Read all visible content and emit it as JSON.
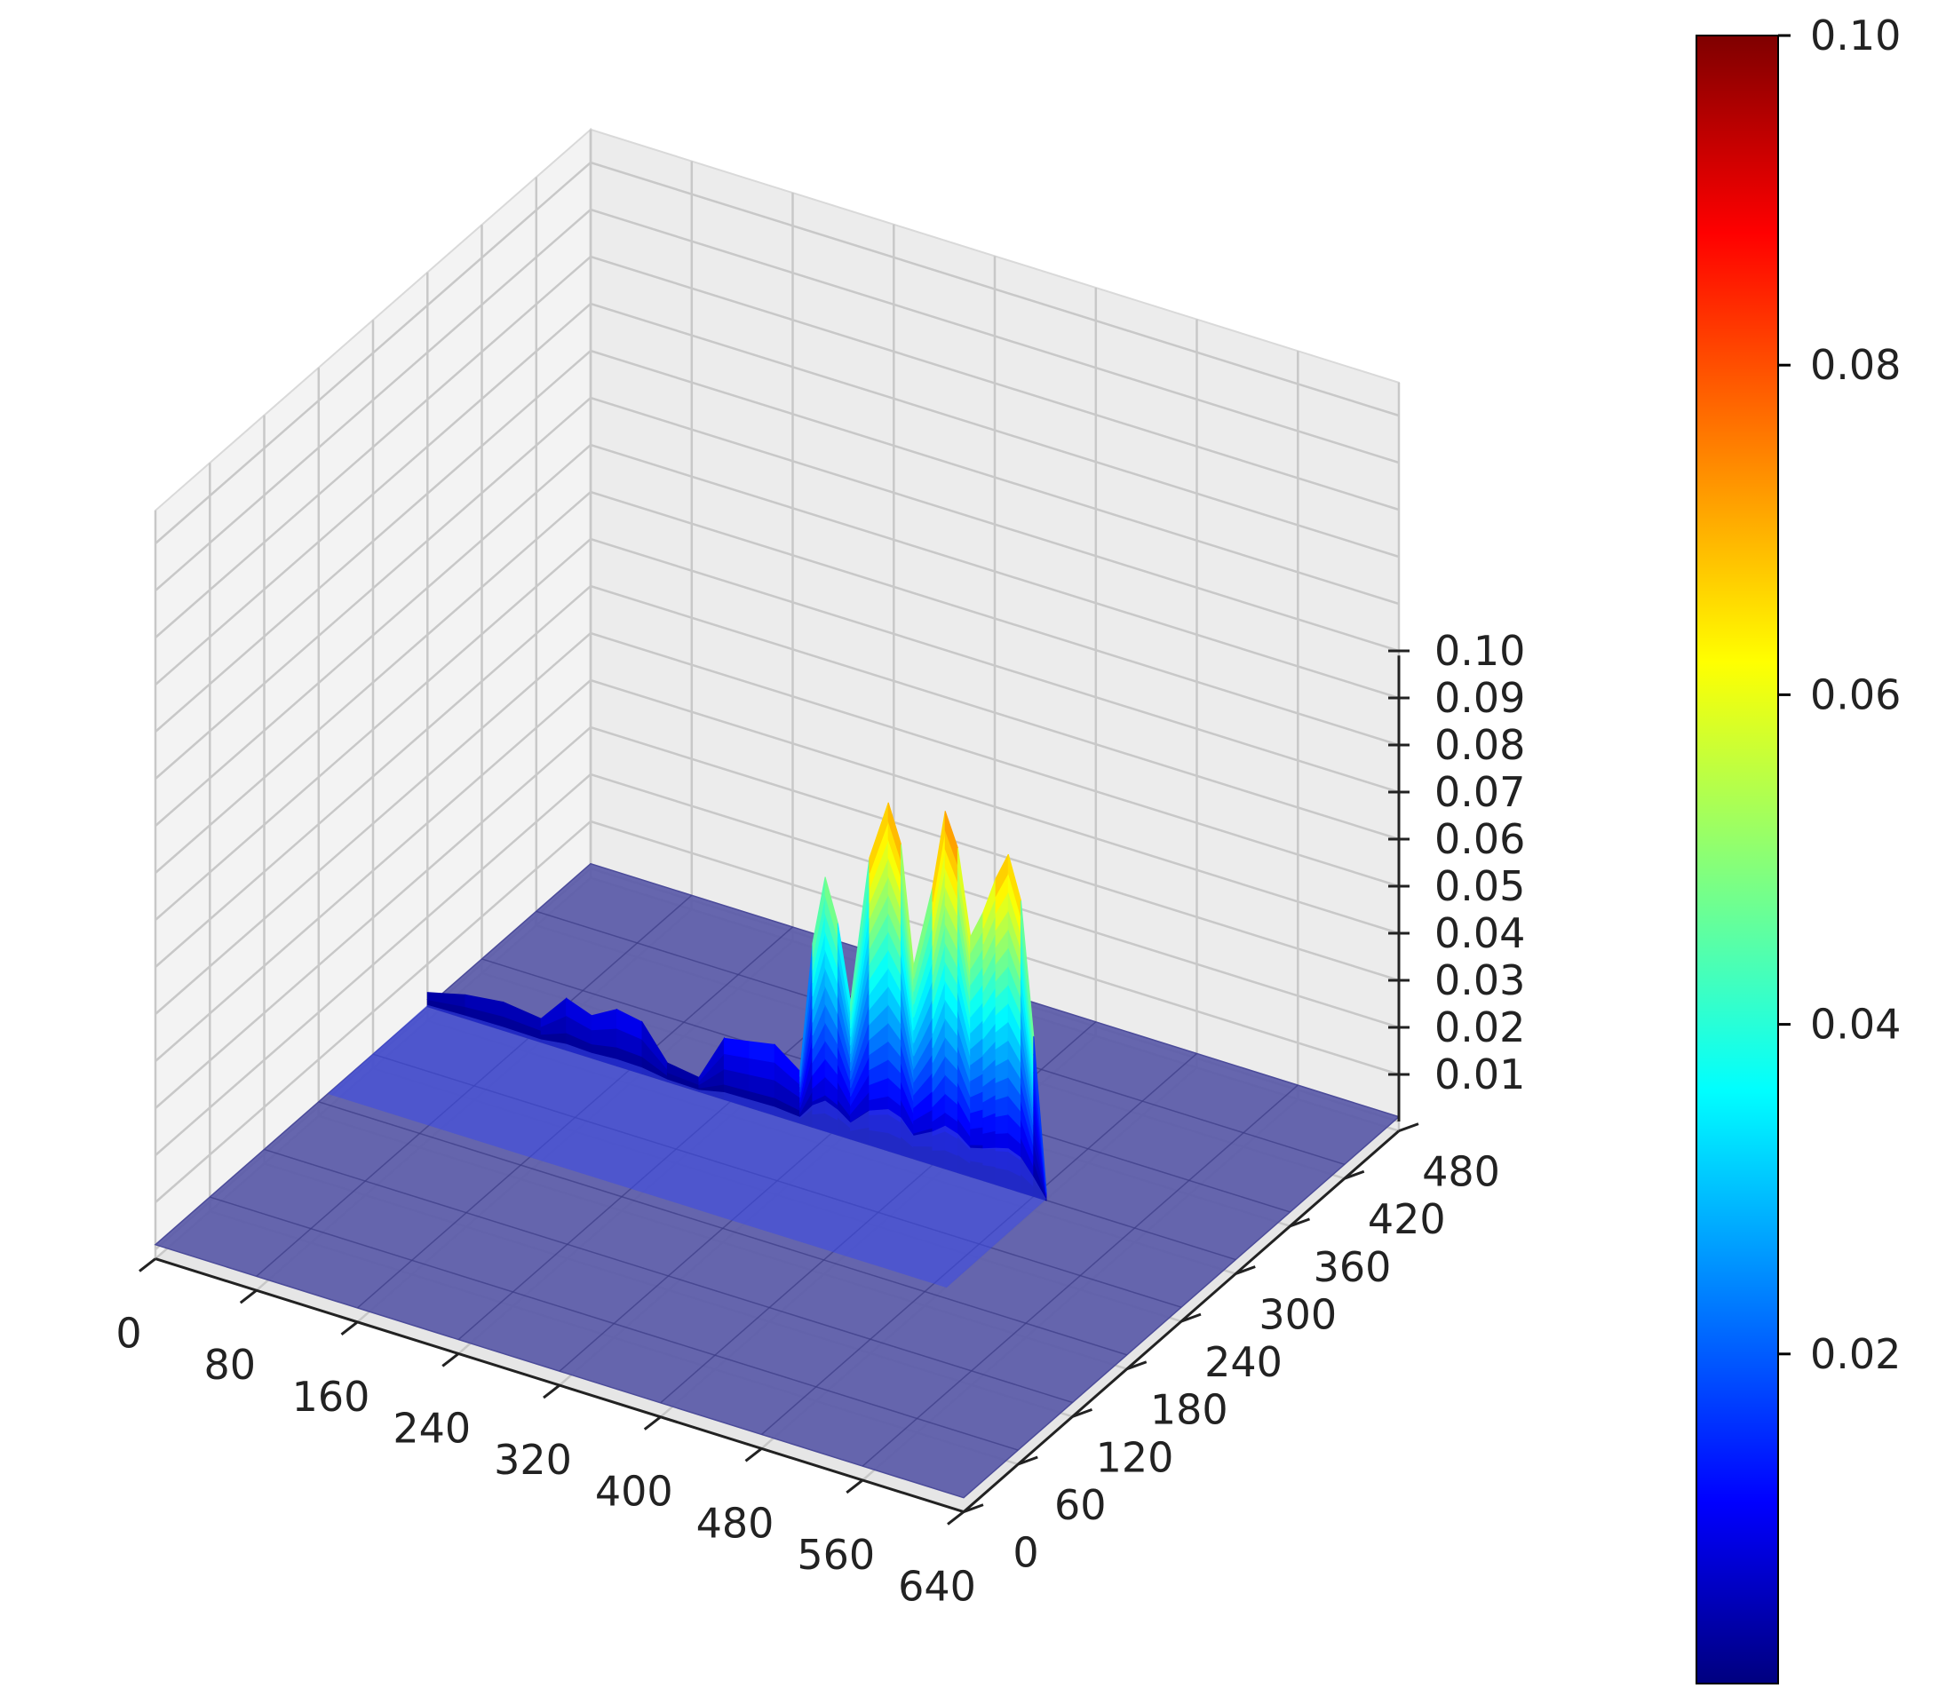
{
  "chart_data": {
    "type": "surface3d",
    "title": "",
    "xlabel": "",
    "ylabel": "",
    "zlabel": "",
    "colormap": "jet",
    "x_ticks": [
      "0",
      "80",
      "160",
      "240",
      "320",
      "400",
      "480",
      "560",
      "640"
    ],
    "y_ticks": [
      "0",
      "60",
      "120",
      "180",
      "240",
      "300",
      "360",
      "420",
      "480"
    ],
    "z_ticks": [
      "0.01",
      "0.02",
      "0.03",
      "0.04",
      "0.05",
      "0.06",
      "0.07",
      "0.08",
      "0.09",
      "0.10"
    ],
    "colorbar_ticks": [
      "0.02",
      "0.04",
      "0.06",
      "0.08",
      "0.10"
    ],
    "xlim": [
      0,
      640
    ],
    "ylim": [
      0,
      480
    ],
    "zlim": [
      0.0,
      0.1
    ],
    "grid": true,
    "floor_level": 0.001,
    "floor_color": "#5a5aa8",
    "ridge": {
      "y": 300,
      "profile": [
        {
          "x": 0,
          "z": 0.004
        },
        {
          "x": 30,
          "z": 0.006
        },
        {
          "x": 60,
          "z": 0.007
        },
        {
          "x": 90,
          "z": 0.006
        },
        {
          "x": 110,
          "z": 0.012
        },
        {
          "x": 130,
          "z": 0.01
        },
        {
          "x": 150,
          "z": 0.013
        },
        {
          "x": 170,
          "z": 0.012
        },
        {
          "x": 190,
          "z": 0.005
        },
        {
          "x": 215,
          "z": 0.004
        },
        {
          "x": 235,
          "z": 0.014
        },
        {
          "x": 255,
          "z": 0.015
        },
        {
          "x": 275,
          "z": 0.016
        },
        {
          "x": 295,
          "z": 0.012
        },
        {
          "x": 305,
          "z": 0.04
        },
        {
          "x": 315,
          "z": 0.055
        },
        {
          "x": 325,
          "z": 0.046
        },
        {
          "x": 335,
          "z": 0.03
        },
        {
          "x": 350,
          "z": 0.062
        },
        {
          "x": 365,
          "z": 0.075
        },
        {
          "x": 375,
          "z": 0.067
        },
        {
          "x": 385,
          "z": 0.042
        },
        {
          "x": 400,
          "z": 0.06
        },
        {
          "x": 410,
          "z": 0.077
        },
        {
          "x": 420,
          "z": 0.07
        },
        {
          "x": 430,
          "z": 0.052
        },
        {
          "x": 440,
          "z": 0.058
        },
        {
          "x": 450,
          "z": 0.066
        },
        {
          "x": 460,
          "z": 0.072
        },
        {
          "x": 470,
          "z": 0.063
        },
        {
          "x": 480,
          "z": 0.035
        },
        {
          "x": 490,
          "z": 0.003
        }
      ]
    }
  }
}
